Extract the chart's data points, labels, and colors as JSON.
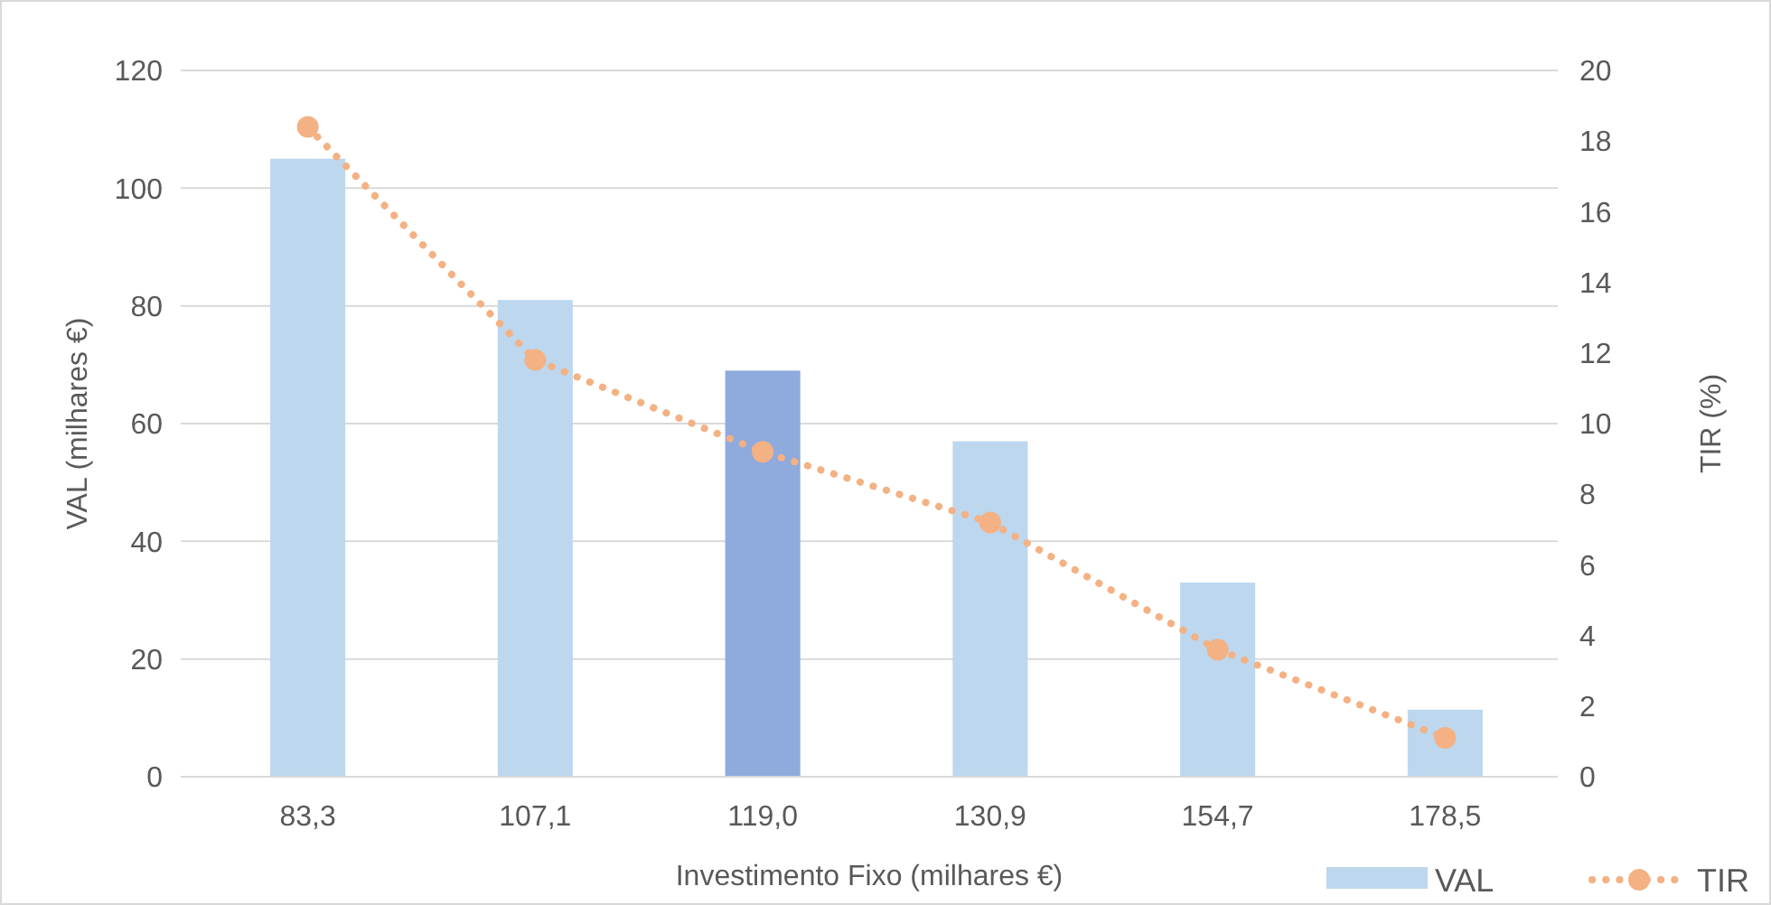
{
  "chart_data": {
    "type": "bar",
    "xlabel": "Investimento Fixo (milhares €)",
    "ylabel": "VAL (milhares €)",
    "y2label": "TIR (%)",
    "categories": [
      "83,3",
      "107,1",
      "119,0",
      "130,9",
      "154,7",
      "178,5"
    ],
    "series": [
      {
        "name": "VAL",
        "color": "#bdd7ee",
        "colors": [
          "#bdd7ee",
          "#bdd7ee",
          "#8faadc",
          "#bdd7ee",
          "#bdd7ee",
          "#bdd7ee"
        ],
        "values": [
          105,
          81,
          69,
          57,
          33,
          11.4
        ]
      },
      {
        "name": "TIR",
        "type": "line",
        "axis": "y2",
        "color": "#f4b183",
        "marker": "circle",
        "line_style": "dotted",
        "values": [
          18.4,
          11.8,
          9.2,
          7.2,
          3.6,
          1.1
        ]
      }
    ],
    "ylim": [
      0,
      120
    ],
    "yticks": [
      0,
      20,
      40,
      60,
      80,
      100,
      120
    ],
    "y2lim": [
      0,
      20
    ],
    "y2ticks": [
      0,
      2,
      4,
      6,
      8,
      10,
      12,
      14,
      16,
      18,
      20
    ],
    "grid": "y",
    "legend": "bottom right"
  }
}
